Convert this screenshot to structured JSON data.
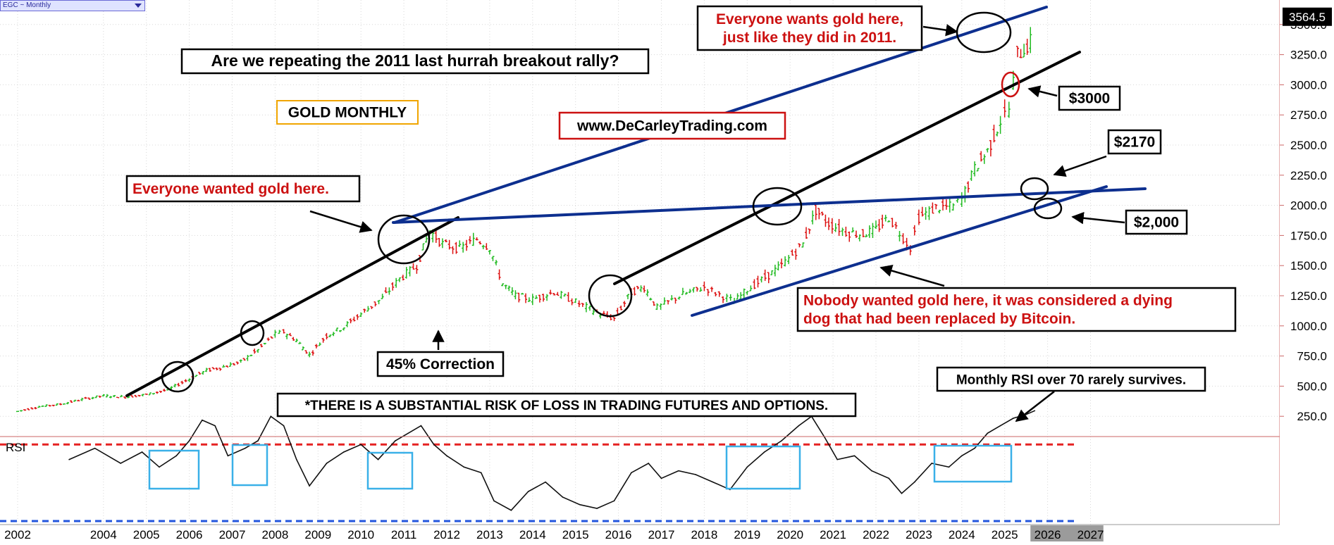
{
  "symbol": {
    "label": "EGC ~ Monthly"
  },
  "price_tag": "3564.5",
  "chart_data": [
    {
      "type": "bar",
      "subtype": "ohlc-monthly",
      "title": "GOLD MONTHLY",
      "ylim": [
        100,
        3600
      ],
      "x_ticks": [
        "2002",
        "2004",
        "2005",
        "2006",
        "2007",
        "2008",
        "2009",
        "2010",
        "2011",
        "2012",
        "2013",
        "2014",
        "2015",
        "2016",
        "2017",
        "2018",
        "2019",
        "2020",
        "2021",
        "2022",
        "2023",
        "2024",
        "2025",
        "2026",
        "2027"
      ],
      "y_ticks": [
        "250.0",
        "500.0",
        "750.0",
        "1000.0",
        "1250.0",
        "1500.0",
        "1750.0",
        "2000.0",
        "2250.0",
        "2500.0",
        "2750.0",
        "3000.0",
        "3250.0",
        "3500.0"
      ],
      "y_tick_values": [
        250,
        500,
        750,
        1000,
        1250,
        1500,
        1750,
        2000,
        2250,
        2500,
        2750,
        3000,
        3250,
        3500
      ],
      "x": [
        2002.0,
        2002.5,
        2003.0,
        2003.5,
        2004.0,
        2004.5,
        2005.0,
        2005.5,
        2006.0,
        2006.4,
        2006.8,
        2007.2,
        2007.6,
        2008.0,
        2008.2,
        2008.5,
        2008.8,
        2009.2,
        2009.6,
        2010.0,
        2010.5,
        2010.9,
        2011.3,
        2011.6,
        2011.9,
        2012.3,
        2012.7,
        2013.0,
        2013.3,
        2013.6,
        2014.0,
        2014.5,
        2015.0,
        2015.5,
        2015.9,
        2016.3,
        2016.6,
        2016.9,
        2017.5,
        2018.0,
        2018.7,
        2019.0,
        2019.5,
        2019.8,
        2020.3,
        2020.6,
        2020.9,
        2021.3,
        2021.7,
        2022.0,
        2022.3,
        2022.8,
        2023.0,
        2023.4,
        2023.8,
        2024.0,
        2024.3,
        2024.6,
        2024.9,
        2025.1,
        2025.3,
        2025.6,
        2025.7
      ],
      "y": [
        290,
        330,
        350,
        390,
        420,
        410,
        430,
        470,
        560,
        630,
        660,
        700,
        800,
        930,
        950,
        880,
        760,
        920,
        990,
        1100,
        1230,
        1390,
        1500,
        1790,
        1680,
        1640,
        1720,
        1650,
        1350,
        1250,
        1220,
        1280,
        1200,
        1110,
        1060,
        1280,
        1320,
        1150,
        1260,
        1320,
        1200,
        1300,
        1420,
        1500,
        1680,
        1960,
        1850,
        1780,
        1760,
        1800,
        1900,
        1650,
        1900,
        1980,
        1990,
        2050,
        2300,
        2450,
        2700,
        2800,
        3250,
        3350,
        3450
      ],
      "series": [
        {
          "name": "RSI",
          "panel": "lower",
          "ylim": [
            25,
            100
          ],
          "y_ticks": [
            "75",
            "60",
            "45",
            "30"
          ],
          "y_tick_values": [
            75,
            60,
            45,
            30
          ],
          "x": [
            2003.2,
            2003.8,
            2004.4,
            2004.9,
            2005.3,
            2005.7,
            2006.0,
            2006.3,
            2006.6,
            2006.9,
            2007.3,
            2007.6,
            2007.9,
            2008.2,
            2008.5,
            2008.8,
            2009.2,
            2009.6,
            2010.0,
            2010.4,
            2010.8,
            2011.1,
            2011.4,
            2011.7,
            2012.0,
            2012.4,
            2012.8,
            2013.1,
            2013.5,
            2013.9,
            2014.3,
            2014.7,
            2015.1,
            2015.5,
            2015.9,
            2016.3,
            2016.7,
            2017.0,
            2017.4,
            2017.8,
            2018.2,
            2018.6,
            2019.0,
            2019.4,
            2019.8,
            2020.2,
            2020.5,
            2020.8,
            2021.1,
            2021.5,
            2021.9,
            2022.3,
            2022.6,
            2022.9,
            2023.3,
            2023.7,
            2024.0,
            2024.3,
            2024.6,
            2024.9,
            2025.2,
            2025.5,
            2025.7
          ],
          "values": [
            62,
            68,
            60,
            66,
            58,
            64,
            72,
            83,
            80,
            64,
            68,
            72,
            85,
            80,
            62,
            48,
            60,
            66,
            70,
            62,
            72,
            76,
            80,
            70,
            64,
            58,
            55,
            40,
            35,
            45,
            50,
            42,
            38,
            36,
            40,
            55,
            60,
            52,
            56,
            54,
            50,
            46,
            58,
            66,
            72,
            80,
            85,
            74,
            62,
            64,
            56,
            52,
            44,
            50,
            60,
            58,
            64,
            68,
            76,
            80,
            84,
            86,
            88
          ]
        }
      ],
      "reference_lines": [
        70,
        30
      ],
      "annotations": {
        "main_question": "Are we repeating the 2011 last hurrah breakout rally?",
        "chart_title": "GOLD MONTHLY",
        "website": "www.DeCarleyTrading.com",
        "wanted_2011": "Everyone wanted gold here.",
        "wants_now": "Everyone wants gold here,\njust like they did in 2011.",
        "nobody_wanted": "Nobody wanted gold here, it was considered a dying\n dog that had been replaced by Bitcoin.",
        "correction": "45% Correction",
        "risk": "*THERE IS A SUBSTANTIAL RISK OF LOSS IN TRADING FUTURES AND OPTIONS.",
        "rsi_note": "Monthly RSI over 70 rarely survives.",
        "level_3000": "$3000",
        "level_2170": "$2170",
        "level_2000": "$2,000",
        "rsi_label": "RSI"
      }
    }
  ],
  "colors": {
    "up": "#22bb22",
    "down": "#dd1111",
    "trendline_blue": "#0d2f8f",
    "trendline_black": "#000000",
    "rsi_upper": "#e52222",
    "rsi_lower": "#2255dd",
    "rsi_box": "#3ab0e8",
    "accent_red": "#cc1111"
  }
}
